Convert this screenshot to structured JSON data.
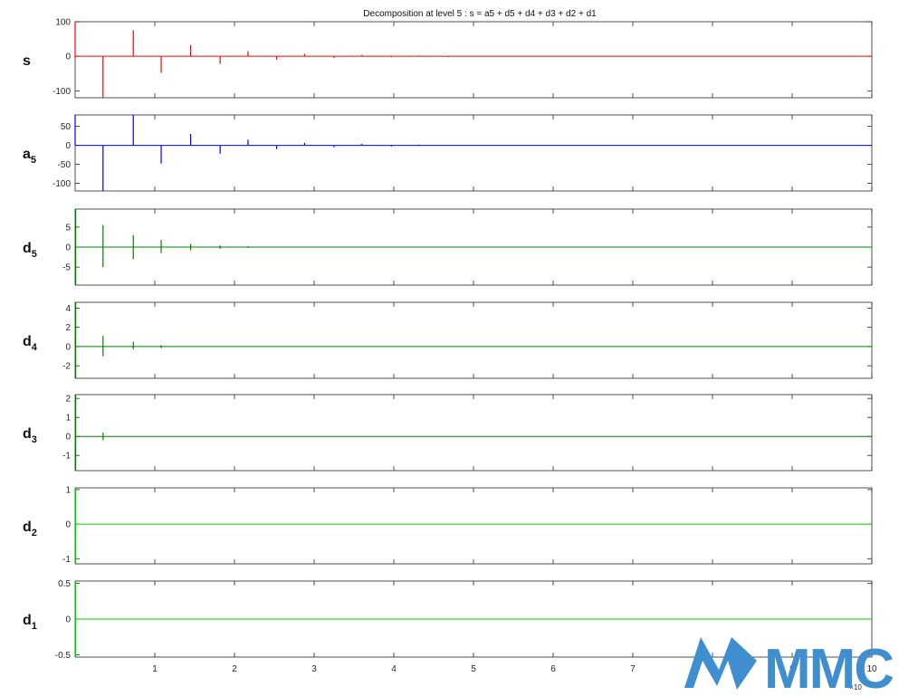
{
  "figure": {
    "title": "Decomposition at level 5 : s = a5 + d5 + d4 + d3 + d2 + d1",
    "x_exponent_label": "×10",
    "watermark_text": "MMC"
  },
  "chart_data": [
    {
      "type": "line",
      "label": "s",
      "label_sub": "",
      "color": "#ff0000",
      "xlim": [
        0,
        10
      ],
      "ylim": [
        -120,
        100
      ],
      "yticks": [
        100,
        0,
        -100
      ],
      "xticks": [
        1,
        2,
        3,
        4,
        5,
        6,
        7,
        8,
        9,
        10
      ],
      "baseline": 0,
      "spikes": [
        {
          "x": 0.0,
          "min": -5,
          "max": 100
        },
        {
          "x": 0.35,
          "min": -120,
          "max": 0
        },
        {
          "x": 0.73,
          "min": 0,
          "max": 75
        },
        {
          "x": 1.08,
          "min": -48,
          "max": 0
        },
        {
          "x": 1.45,
          "min": 0,
          "max": 32
        },
        {
          "x": 1.82,
          "min": -22,
          "max": 0
        },
        {
          "x": 2.17,
          "min": 0,
          "max": 15
        },
        {
          "x": 2.53,
          "min": -10,
          "max": 0
        },
        {
          "x": 2.88,
          "min": 0,
          "max": 7
        },
        {
          "x": 3.25,
          "min": -5,
          "max": 0
        },
        {
          "x": 3.6,
          "min": 0,
          "max": 4
        },
        {
          "x": 3.97,
          "min": -3,
          "max": 0
        },
        {
          "x": 4.32,
          "min": 0,
          "max": 2
        },
        {
          "x": 4.68,
          "min": -2,
          "max": 0
        }
      ]
    },
    {
      "type": "line",
      "label": "a",
      "label_sub": "5",
      "color": "#0000ff",
      "xlim": [
        0,
        10
      ],
      "ylim": [
        -120,
        80
      ],
      "yticks": [
        50,
        0,
        -50,
        -100
      ],
      "xticks": [
        1,
        2,
        3,
        4,
        5,
        6,
        7,
        8,
        9,
        10
      ],
      "baseline": 0,
      "spikes": [
        {
          "x": 0.0,
          "min": 0,
          "max": 80
        },
        {
          "x": 0.35,
          "min": -120,
          "max": 0
        },
        {
          "x": 0.73,
          "min": 0,
          "max": 80
        },
        {
          "x": 1.08,
          "min": -48,
          "max": 0
        },
        {
          "x": 1.45,
          "min": 0,
          "max": 30
        },
        {
          "x": 1.82,
          "min": -22,
          "max": 0
        },
        {
          "x": 2.17,
          "min": 0,
          "max": 15
        },
        {
          "x": 2.53,
          "min": -10,
          "max": 0
        },
        {
          "x": 2.88,
          "min": 0,
          "max": 7
        },
        {
          "x": 3.25,
          "min": -5,
          "max": 0
        },
        {
          "x": 3.6,
          "min": 0,
          "max": 4
        },
        {
          "x": 3.97,
          "min": -3,
          "max": 0
        },
        {
          "x": 4.32,
          "min": 0,
          "max": 2
        }
      ]
    },
    {
      "type": "line",
      "label": "d",
      "label_sub": "5",
      "color": "#008000",
      "xlim": [
        0,
        10
      ],
      "ylim": [
        -9.5,
        9.5
      ],
      "yticks": [
        5,
        0,
        -5
      ],
      "xticks": [
        1,
        2,
        3,
        4,
        5,
        6,
        7,
        8,
        9,
        10
      ],
      "baseline": 0,
      "spikes": [
        {
          "x": 0.35,
          "min": -5,
          "max": 5.5
        },
        {
          "x": 0.73,
          "min": -3,
          "max": 3
        },
        {
          "x": 1.08,
          "min": -1.5,
          "max": 1.8
        },
        {
          "x": 1.45,
          "min": -0.8,
          "max": 0.8
        },
        {
          "x": 1.82,
          "min": -0.4,
          "max": 0.4
        },
        {
          "x": 2.17,
          "min": -0.2,
          "max": 0.2
        }
      ]
    },
    {
      "type": "line",
      "label": "d",
      "label_sub": "4",
      "color": "#008000",
      "xlim": [
        0,
        10
      ],
      "ylim": [
        -3.3,
        4.6
      ],
      "yticks": [
        4,
        2,
        0,
        -2
      ],
      "xticks": [
        1,
        2,
        3,
        4,
        5,
        6,
        7,
        8,
        9,
        10
      ],
      "baseline": 0,
      "spikes": [
        {
          "x": 0.35,
          "min": -1,
          "max": 1.1
        },
        {
          "x": 0.73,
          "min": -0.3,
          "max": 0.5
        },
        {
          "x": 1.08,
          "min": -0.15,
          "max": 0.15
        }
      ]
    },
    {
      "type": "line",
      "label": "d",
      "label_sub": "3",
      "color": "#008000",
      "xlim": [
        0,
        10
      ],
      "ylim": [
        -1.8,
        2.2
      ],
      "yticks": [
        2,
        1,
        0,
        -1
      ],
      "xticks": [
        1,
        2,
        3,
        4,
        5,
        6,
        7,
        8,
        9,
        10
      ],
      "baseline": 0,
      "spikes": [
        {
          "x": 0.35,
          "min": -0.2,
          "max": 0.2
        }
      ]
    },
    {
      "type": "line",
      "label": "d",
      "label_sub": "2",
      "color": "#00cc00",
      "xlim": [
        0,
        10
      ],
      "ylim": [
        -1.15,
        1.05
      ],
      "yticks": [
        1,
        0,
        -1
      ],
      "xticks": [
        1,
        2,
        3,
        4,
        5,
        6,
        7,
        8,
        9,
        10
      ],
      "baseline": 0,
      "spikes": []
    },
    {
      "type": "line",
      "label": "d",
      "label_sub": "1",
      "color": "#00cc00",
      "xlim": [
        0,
        10
      ],
      "ylim": [
        -0.53,
        0.53
      ],
      "yticks": [
        0.5,
        0,
        -0.5
      ],
      "xticks": [
        1,
        2,
        3,
        4,
        5,
        6,
        7,
        8,
        9,
        10
      ],
      "baseline": 0,
      "spikes": []
    }
  ]
}
